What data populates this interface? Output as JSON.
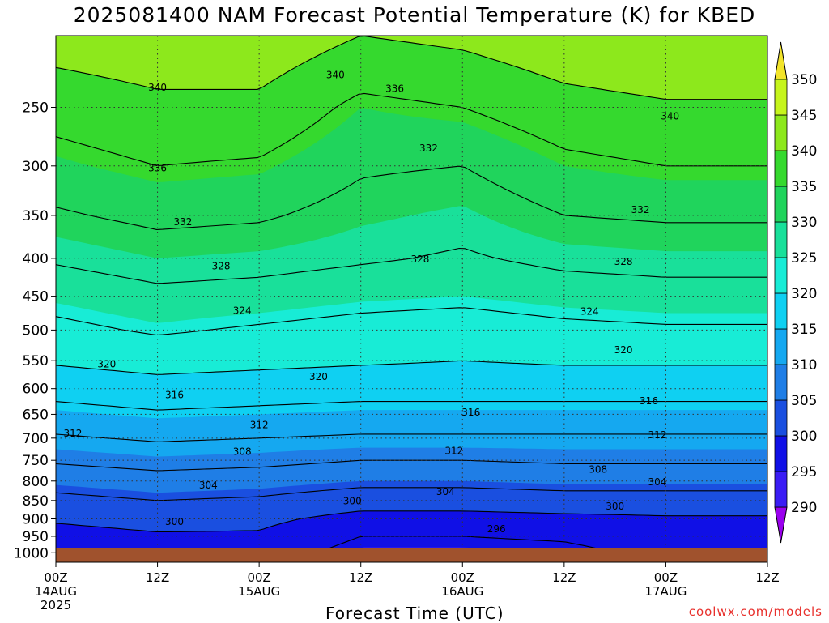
{
  "title": "2025081400 NAM Forecast Potential Temperature (K) for KBED",
  "x_axis_title": "Forecast Time (UTC)",
  "credit": "coolwx.com/models",
  "colors": {
    "terrain": "#a0522d",
    "contour": "#000000",
    "credit": "#e8302c"
  },
  "chart_data": {
    "type": "contour",
    "title": "2025081400 NAM Forecast Potential Temperature (K) for KBED",
    "xlabel": "Forecast Time (UTC)",
    "ylabel": "",
    "y_scale": "log-pressure",
    "y_ticks": [
      1000,
      950,
      900,
      850,
      800,
      750,
      700,
      650,
      600,
      550,
      500,
      450,
      400,
      350,
      300,
      250
    ],
    "y_reversed": true,
    "x_range_hours": [
      0,
      84
    ],
    "x_ticks": [
      {
        "hour": 0,
        "lines": [
          "00Z",
          "14AUG",
          "2025"
        ]
      },
      {
        "hour": 12,
        "lines": [
          "12Z"
        ]
      },
      {
        "hour": 24,
        "lines": [
          "00Z",
          "15AUG"
        ]
      },
      {
        "hour": 36,
        "lines": [
          "12Z"
        ]
      },
      {
        "hour": 48,
        "lines": [
          "00Z",
          "16AUG"
        ]
      },
      {
        "hour": 60,
        "lines": [
          "12Z"
        ]
      },
      {
        "hour": 72,
        "lines": [
          "00Z",
          "17AUG"
        ]
      },
      {
        "hour": 84,
        "lines": [
          "12Z"
        ]
      }
    ],
    "colorbar": {
      "unit": "K",
      "levels": [
        290,
        295,
        300,
        305,
        310,
        315,
        320,
        325,
        330,
        335,
        340,
        345,
        350
      ],
      "colors": [
        "#9a00ee",
        "#3a1cf5",
        "#1010e6",
        "#1a4fe0",
        "#1f7ee6",
        "#15a8f0",
        "#0fd0f2",
        "#18ecd6",
        "#19e09a",
        "#20d45c",
        "#35d92e",
        "#8de81c",
        "#c6f51c",
        "#f2e42a"
      ],
      "extend": "both"
    },
    "contour_levels": [
      296,
      300,
      304,
      308,
      312,
      316,
      320,
      324,
      328,
      332,
      336,
      340
    ],
    "theta_profiles": [
      {
        "hour": 0,
        "pressure": [
          1000,
          950,
          900,
          850,
          800,
          750,
          700,
          650,
          600,
          550,
          500,
          450,
          400,
          350,
          300,
          250,
          200
        ],
        "theta": [
          297,
          298.5,
          300.5,
          303,
          305.5,
          308.5,
          311.5,
          314.5,
          317.5,
          320.5,
          323,
          325.5,
          328.5,
          331.5,
          334.5,
          337.5,
          342
        ]
      },
      {
        "hour": 12,
        "pressure": [
          1000,
          950,
          900,
          850,
          800,
          750,
          700,
          650,
          600,
          550,
          500,
          450,
          400,
          350,
          300,
          250,
          200
        ],
        "theta": [
          298,
          299.5,
          301.5,
          304,
          306.5,
          309.5,
          312.5,
          315.5,
          318.5,
          321.5,
          324.5,
          327,
          330,
          333,
          336,
          339,
          343
        ]
      },
      {
        "hour": 24,
        "pressure": [
          1000,
          950,
          900,
          850,
          800,
          750,
          700,
          650,
          600,
          550,
          500,
          450,
          400,
          350,
          300,
          250,
          200
        ],
        "theta": [
          298,
          299.5,
          301,
          303.5,
          306,
          309,
          312,
          315,
          318,
          321,
          323.5,
          326.5,
          329.5,
          332.5,
          335.5,
          339,
          343
        ]
      },
      {
        "hour": 36,
        "pressure": [
          1000,
          950,
          900,
          850,
          800,
          750,
          700,
          650,
          600,
          550,
          500,
          450,
          400,
          350,
          300,
          250,
          200
        ],
        "theta": [
          294.5,
          296,
          298.5,
          302,
          305,
          308,
          311.5,
          314.5,
          317.5,
          320.5,
          322.5,
          325.5,
          328.5,
          330.5,
          332.5,
          335,
          340
        ]
      },
      {
        "hour": 48,
        "pressure": [
          1000,
          950,
          900,
          850,
          800,
          750,
          700,
          650,
          600,
          550,
          500,
          450,
          400,
          350,
          300,
          250,
          200
        ],
        "theta": [
          294.5,
          296,
          298.5,
          302,
          305,
          308,
          311.5,
          314.5,
          317.5,
          320,
          322,
          325,
          327.5,
          329.5,
          332,
          336,
          341
        ]
      },
      {
        "hour": 60,
        "pressure": [
          1000,
          950,
          900,
          850,
          800,
          750,
          700,
          650,
          600,
          550,
          500,
          450,
          400,
          350,
          300,
          250,
          200
        ],
        "theta": [
          295,
          296.5,
          299,
          302.5,
          305.5,
          308.5,
          311.5,
          314.5,
          317.5,
          320.5,
          323,
          326,
          329,
          332,
          335,
          338.5,
          343
        ]
      },
      {
        "hour": 72,
        "pressure": [
          1000,
          950,
          900,
          850,
          800,
          750,
          700,
          650,
          600,
          550,
          500,
          450,
          400,
          350,
          300,
          250,
          200
        ],
        "theta": [
          297,
          298,
          299.5,
          302.5,
          305.5,
          308.5,
          311.5,
          314.5,
          317.5,
          320.5,
          323.5,
          326.5,
          329.5,
          332.5,
          336,
          339.5,
          344
        ]
      },
      {
        "hour": 84,
        "pressure": [
          1000,
          950,
          900,
          850,
          800,
          750,
          700,
          650,
          600,
          550,
          500,
          450,
          400,
          350,
          300,
          250,
          200
        ],
        "theta": [
          296,
          297.5,
          299.5,
          302.5,
          305.5,
          308.5,
          311.5,
          314.5,
          317.5,
          320.5,
          323.5,
          326.5,
          329.5,
          332.5,
          336,
          339.5,
          344
        ]
      }
    ],
    "contour_labels": [
      {
        "text": "340",
        "hour": 33,
        "pressure": 226
      },
      {
        "text": "340",
        "hour": 12,
        "pressure": 235
      },
      {
        "text": "336",
        "hour": 40,
        "pressure": 236
      },
      {
        "text": "340",
        "hour": 72.5,
        "pressure": 257
      },
      {
        "text": "336",
        "hour": 12,
        "pressure": 302
      },
      {
        "text": "332",
        "hour": 44,
        "pressure": 284
      },
      {
        "text": "332",
        "hour": 69,
        "pressure": 344
      },
      {
        "text": "332",
        "hour": 15,
        "pressure": 357
      },
      {
        "text": "328",
        "hour": 19.5,
        "pressure": 410
      },
      {
        "text": "328",
        "hour": 43,
        "pressure": 401
      },
      {
        "text": "328",
        "hour": 67,
        "pressure": 404
      },
      {
        "text": "324",
        "hour": 22,
        "pressure": 471
      },
      {
        "text": "324",
        "hour": 63,
        "pressure": 472
      },
      {
        "text": "320",
        "hour": 6,
        "pressure": 556
      },
      {
        "text": "320",
        "hour": 31,
        "pressure": 578
      },
      {
        "text": "320",
        "hour": 67,
        "pressure": 532
      },
      {
        "text": "316",
        "hour": 14,
        "pressure": 612
      },
      {
        "text": "316",
        "hour": 49,
        "pressure": 646
      },
      {
        "text": "316",
        "hour": 70,
        "pressure": 624
      },
      {
        "text": "312",
        "hour": 2,
        "pressure": 690
      },
      {
        "text": "312",
        "hour": 24,
        "pressure": 672
      },
      {
        "text": "312",
        "hour": 47,
        "pressure": 728
      },
      {
        "text": "312",
        "hour": 71,
        "pressure": 693
      },
      {
        "text": "308",
        "hour": 22,
        "pressure": 730
      },
      {
        "text": "308",
        "hour": 64,
        "pressure": 772
      },
      {
        "text": "304",
        "hour": 18,
        "pressure": 811
      },
      {
        "text": "304",
        "hour": 46,
        "pressure": 827
      },
      {
        "text": "304",
        "hour": 71,
        "pressure": 802
      },
      {
        "text": "300",
        "hour": 35,
        "pressure": 851
      },
      {
        "text": "300",
        "hour": 66,
        "pressure": 866
      },
      {
        "text": "300",
        "hour": 14,
        "pressure": 908
      },
      {
        "text": "296",
        "hour": 52,
        "pressure": 929
      }
    ]
  }
}
